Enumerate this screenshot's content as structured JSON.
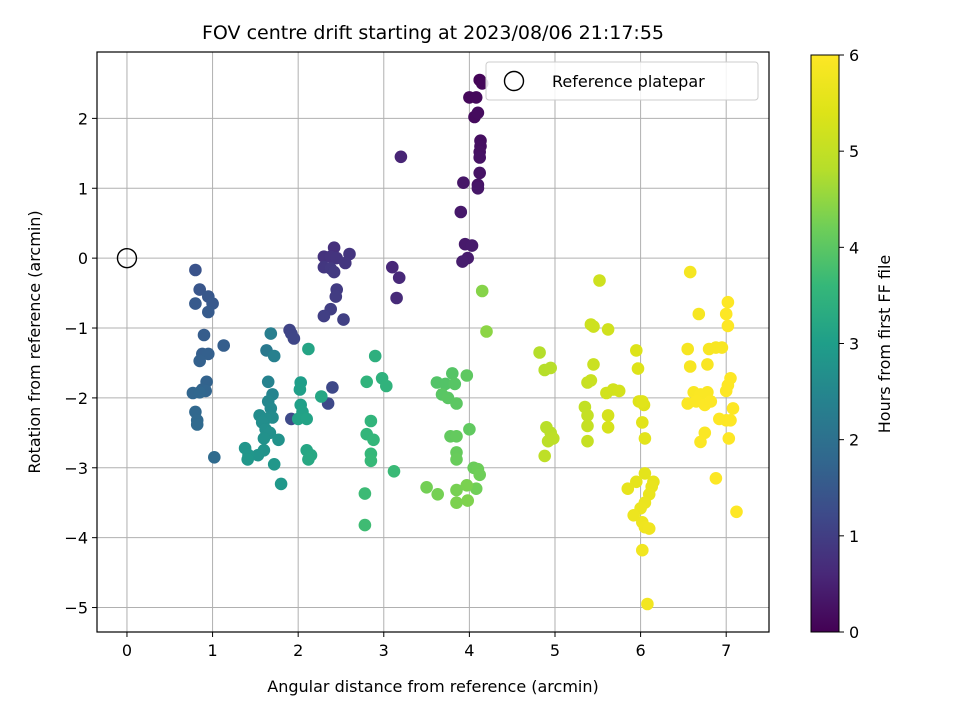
{
  "chart_data": {
    "type": "scatter",
    "title": "FOV centre drift starting at 2023/08/06 21:17:55",
    "xlabel": "Angular distance from reference (arcmin)",
    "ylabel": "Rotation from reference (arcmin)",
    "xlim": [
      -0.35,
      7.5
    ],
    "ylim": [
      -5.35,
      2.95
    ],
    "xticks": [
      0,
      1,
      2,
      3,
      4,
      5,
      6,
      7
    ],
    "yticks": [
      -5,
      -4,
      -3,
      -2,
      -1,
      0,
      1,
      2
    ],
    "xtick_labels": [
      "0",
      "1",
      "2",
      "3",
      "4",
      "5",
      "6",
      "7"
    ],
    "ytick_labels": [
      "−5",
      "−4",
      "−3",
      "−2",
      "−1",
      "0",
      "1",
      "2"
    ],
    "grid": true,
    "legend": {
      "entries": [
        "Reference platepar"
      ],
      "placement": "upper right"
    },
    "colormap": "viridis",
    "colorbar": {
      "label": "Hours from first FF file",
      "range": [
        0,
        6
      ],
      "ticks": [
        0,
        1,
        2,
        3,
        4,
        5,
        6
      ],
      "tick_labels": [
        "0",
        "1",
        "2",
        "3",
        "4",
        "5",
        "6"
      ]
    },
    "reference_point": {
      "x": 0,
      "y": 0,
      "label": "Reference platepar"
    },
    "points": [
      [
        4.12,
        2.55,
        0.05
      ],
      [
        4.15,
        2.5,
        0.07
      ],
      [
        4.0,
        2.3,
        0.1
      ],
      [
        4.08,
        2.3,
        0.12
      ],
      [
        4.06,
        2.02,
        0.15
      ],
      [
        4.1,
        2.08,
        0.17
      ],
      [
        4.13,
        1.68,
        0.2
      ],
      [
        4.13,
        1.6,
        0.22
      ],
      [
        4.12,
        1.52,
        0.24
      ],
      [
        4.12,
        1.44,
        0.26
      ],
      [
        4.12,
        1.22,
        0.28
      ],
      [
        4.1,
        1.05,
        0.3
      ],
      [
        3.93,
        1.08,
        0.32
      ],
      [
        4.1,
        1.0,
        0.34
      ],
      [
        3.9,
        0.66,
        0.36
      ],
      [
        3.95,
        0.2,
        0.38
      ],
      [
        4.03,
        0.18,
        0.4
      ],
      [
        3.98,
        0.0,
        0.42
      ],
      [
        3.92,
        -0.05,
        0.44
      ],
      [
        3.2,
        1.45,
        0.55
      ],
      [
        3.1,
        -0.13,
        0.6
      ],
      [
        3.18,
        -0.28,
        0.62
      ],
      [
        3.15,
        -0.57,
        0.65
      ],
      [
        2.42,
        0.15,
        0.75
      ],
      [
        2.3,
        0.02,
        0.78
      ],
      [
        2.38,
        0.02,
        0.8
      ],
      [
        2.45,
        0.0,
        0.82
      ],
      [
        2.6,
        0.06,
        0.84
      ],
      [
        2.55,
        -0.07,
        0.86
      ],
      [
        2.3,
        -0.13,
        0.88
      ],
      [
        2.38,
        -0.15,
        0.9
      ],
      [
        2.42,
        -0.2,
        0.92
      ],
      [
        2.45,
        -0.45,
        0.95
      ],
      [
        2.44,
        -0.55,
        0.97
      ],
      [
        2.38,
        -0.73,
        1.0
      ],
      [
        2.3,
        -0.83,
        1.02
      ],
      [
        2.53,
        -0.88,
        1.04
      ],
      [
        1.9,
        -1.03,
        1.1
      ],
      [
        1.92,
        -1.08,
        1.12
      ],
      [
        1.95,
        -1.15,
        1.14
      ],
      [
        2.4,
        -1.85,
        1.18
      ],
      [
        2.35,
        -2.08,
        1.2
      ],
      [
        1.92,
        -2.3,
        1.22
      ],
      [
        0.8,
        -0.17,
        1.4
      ],
      [
        0.85,
        -0.45,
        1.45
      ],
      [
        0.95,
        -0.55,
        1.48
      ],
      [
        1.0,
        -0.65,
        1.5
      ],
      [
        0.8,
        -0.65,
        1.52
      ],
      [
        0.95,
        -0.77,
        1.54
      ],
      [
        0.9,
        -1.1,
        1.58
      ],
      [
        1.13,
        -1.25,
        1.6
      ],
      [
        0.88,
        -1.37,
        1.62
      ],
      [
        0.95,
        -1.37,
        1.64
      ],
      [
        0.85,
        -1.47,
        1.66
      ],
      [
        0.93,
        -1.77,
        1.7
      ],
      [
        0.88,
        -1.88,
        1.72
      ],
      [
        0.92,
        -1.9,
        1.74
      ],
      [
        0.77,
        -1.93,
        1.76
      ],
      [
        0.85,
        -1.92,
        1.78
      ],
      [
        0.8,
        -2.2,
        1.8
      ],
      [
        0.82,
        -2.32,
        1.82
      ],
      [
        0.82,
        -2.38,
        1.84
      ],
      [
        1.02,
        -2.85,
        1.86
      ],
      [
        1.63,
        -1.32,
        2.2
      ],
      [
        1.68,
        -1.08,
        2.3
      ],
      [
        1.72,
        -1.4,
        2.35
      ],
      [
        1.65,
        -1.77,
        2.4
      ],
      [
        1.7,
        -1.95,
        2.45
      ],
      [
        1.65,
        -2.05,
        2.5
      ],
      [
        1.68,
        -2.15,
        2.55
      ],
      [
        1.7,
        -2.28,
        2.6
      ],
      [
        1.55,
        -2.25,
        2.62
      ],
      [
        1.62,
        -2.3,
        2.64
      ],
      [
        1.58,
        -2.35,
        2.66
      ],
      [
        1.62,
        -2.45,
        2.68
      ],
      [
        1.67,
        -2.5,
        2.7
      ],
      [
        1.6,
        -2.58,
        2.72
      ],
      [
        1.77,
        -2.6,
        2.74
      ],
      [
        1.6,
        -2.75,
        2.76
      ],
      [
        1.53,
        -2.82,
        2.78
      ],
      [
        1.38,
        -2.72,
        2.8
      ],
      [
        1.42,
        -2.82,
        2.82
      ],
      [
        1.41,
        -2.88,
        2.84
      ],
      [
        1.72,
        -2.95,
        2.86
      ],
      [
        1.8,
        -3.23,
        2.88
      ],
      [
        2.03,
        -1.78,
        3.0
      ],
      [
        2.02,
        -1.88,
        3.02
      ],
      [
        2.03,
        -2.1,
        3.05
      ],
      [
        2.05,
        -2.2,
        3.08
      ],
      [
        2.0,
        -2.3,
        3.1
      ],
      [
        2.1,
        -2.3,
        3.12
      ],
      [
        2.12,
        -1.3,
        3.15
      ],
      [
        2.27,
        -1.98,
        3.18
      ],
      [
        2.1,
        -2.75,
        3.2
      ],
      [
        2.15,
        -2.82,
        3.22
      ],
      [
        2.12,
        -2.88,
        3.24
      ],
      [
        2.9,
        -1.4,
        3.4
      ],
      [
        2.98,
        -1.72,
        3.45
      ],
      [
        3.03,
        -1.83,
        3.48
      ],
      [
        2.8,
        -1.77,
        3.5
      ],
      [
        2.85,
        -2.33,
        3.52
      ],
      [
        2.8,
        -2.52,
        3.55
      ],
      [
        2.88,
        -2.6,
        3.58
      ],
      [
        2.85,
        -2.8,
        3.6
      ],
      [
        2.85,
        -2.9,
        3.62
      ],
      [
        3.12,
        -3.05,
        3.65
      ],
      [
        2.78,
        -3.37,
        3.68
      ],
      [
        2.78,
        -3.82,
        3.7
      ],
      [
        3.62,
        -1.78,
        3.9
      ],
      [
        3.72,
        -1.8,
        3.92
      ],
      [
        3.8,
        -1.65,
        3.94
      ],
      [
        3.83,
        -1.8,
        3.96
      ],
      [
        3.68,
        -1.95,
        3.98
      ],
      [
        3.75,
        -2.0,
        4.0
      ],
      [
        3.85,
        -2.08,
        4.02
      ],
      [
        3.97,
        -1.68,
        4.04
      ],
      [
        4.0,
        -2.45,
        4.06
      ],
      [
        3.78,
        -2.55,
        4.08
      ],
      [
        3.85,
        -2.55,
        4.1
      ],
      [
        3.85,
        -2.78,
        4.12
      ],
      [
        3.85,
        -2.88,
        4.14
      ],
      [
        4.05,
        -3.0,
        4.16
      ],
      [
        4.1,
        -3.02,
        4.18
      ],
      [
        4.12,
        -3.1,
        4.2
      ],
      [
        4.08,
        -3.3,
        4.22
      ],
      [
        3.5,
        -3.28,
        4.24
      ],
      [
        3.63,
        -3.38,
        4.26
      ],
      [
        3.85,
        -3.32,
        4.28
      ],
      [
        3.97,
        -3.25,
        4.3
      ],
      [
        3.85,
        -3.5,
        4.32
      ],
      [
        3.98,
        -3.47,
        4.34
      ],
      [
        4.15,
        -0.47,
        4.4
      ],
      [
        4.2,
        -1.05,
        4.45
      ],
      [
        4.82,
        -1.35,
        4.8
      ],
      [
        4.88,
        -1.6,
        4.82
      ],
      [
        4.95,
        -1.57,
        4.84
      ],
      [
        4.9,
        -2.42,
        4.86
      ],
      [
        4.95,
        -2.5,
        4.88
      ],
      [
        4.92,
        -2.62,
        4.9
      ],
      [
        4.98,
        -2.58,
        4.92
      ],
      [
        4.88,
        -2.83,
        4.94
      ],
      [
        5.35,
        -2.13,
        5.0
      ],
      [
        5.38,
        -2.25,
        5.02
      ],
      [
        5.38,
        -2.4,
        5.04
      ],
      [
        5.38,
        -2.62,
        5.06
      ],
      [
        5.38,
        -1.78,
        5.08
      ],
      [
        5.42,
        -1.75,
        5.1
      ],
      [
        5.45,
        -1.52,
        5.12
      ],
      [
        5.42,
        -0.95,
        5.14
      ],
      [
        5.45,
        -0.98,
        5.16
      ],
      [
        5.52,
        -0.32,
        5.18
      ],
      [
        5.62,
        -1.02,
        5.2
      ],
      [
        5.6,
        -1.93,
        5.22
      ],
      [
        5.68,
        -1.88,
        5.24
      ],
      [
        5.75,
        -1.9,
        5.26
      ],
      [
        5.62,
        -2.25,
        5.28
      ],
      [
        5.62,
        -2.42,
        5.3
      ],
      [
        5.95,
        -1.32,
        5.4
      ],
      [
        5.97,
        -1.58,
        5.42
      ],
      [
        5.98,
        -2.05,
        5.44
      ],
      [
        6.04,
        -2.1,
        5.46
      ],
      [
        6.02,
        -2.05,
        5.48
      ],
      [
        6.02,
        -2.35,
        5.5
      ],
      [
        6.05,
        -2.58,
        5.52
      ],
      [
        6.05,
        -3.08,
        5.54
      ],
      [
        5.95,
        -3.2,
        5.56
      ],
      [
        5.85,
        -3.3,
        5.58
      ],
      [
        6.15,
        -3.2,
        5.6
      ],
      [
        6.13,
        -3.27,
        5.62
      ],
      [
        6.1,
        -3.38,
        5.64
      ],
      [
        6.05,
        -3.5,
        5.66
      ],
      [
        6.0,
        -3.58,
        5.68
      ],
      [
        5.92,
        -3.68,
        5.7
      ],
      [
        6.02,
        -3.78,
        5.72
      ],
      [
        6.05,
        -3.85,
        5.74
      ],
      [
        6.1,
        -3.87,
        5.76
      ],
      [
        6.02,
        -4.18,
        5.78
      ],
      [
        6.08,
        -4.95,
        5.8
      ],
      [
        6.58,
        -0.2,
        5.85
      ],
      [
        6.68,
        -0.8,
        5.86
      ],
      [
        6.55,
        -1.3,
        5.87
      ],
      [
        6.58,
        -1.55,
        5.88
      ],
      [
        6.8,
        -1.3,
        5.89
      ],
      [
        6.88,
        -1.28,
        5.9
      ],
      [
        6.95,
        -1.28,
        5.91
      ],
      [
        6.78,
        -1.52,
        5.92
      ],
      [
        6.62,
        -1.92,
        5.93
      ],
      [
        6.7,
        -1.95,
        5.94
      ],
      [
        6.78,
        -1.92,
        5.95
      ],
      [
        6.55,
        -2.08,
        5.96
      ],
      [
        6.65,
        -2.05,
        5.97
      ],
      [
        6.75,
        -2.1,
        5.98
      ],
      [
        6.82,
        -2.05,
        5.99
      ],
      [
        7.02,
        -0.63,
        6.0
      ],
      [
        7.0,
        -0.8,
        6.0
      ],
      [
        7.02,
        -0.97,
        6.0
      ],
      [
        7.05,
        -1.72,
        6.0
      ],
      [
        7.02,
        -1.82,
        6.0
      ],
      [
        7.0,
        -1.9,
        6.0
      ],
      [
        7.08,
        -2.15,
        6.0
      ],
      [
        6.92,
        -2.3,
        6.0
      ],
      [
        7.0,
        -2.32,
        6.0
      ],
      [
        7.05,
        -2.32,
        6.0
      ],
      [
        6.75,
        -2.5,
        5.95
      ],
      [
        6.7,
        -2.63,
        5.96
      ],
      [
        7.03,
        -2.58,
        6.0
      ],
      [
        6.88,
        -3.15,
        5.98
      ],
      [
        7.12,
        -3.63,
        6.0
      ]
    ]
  }
}
